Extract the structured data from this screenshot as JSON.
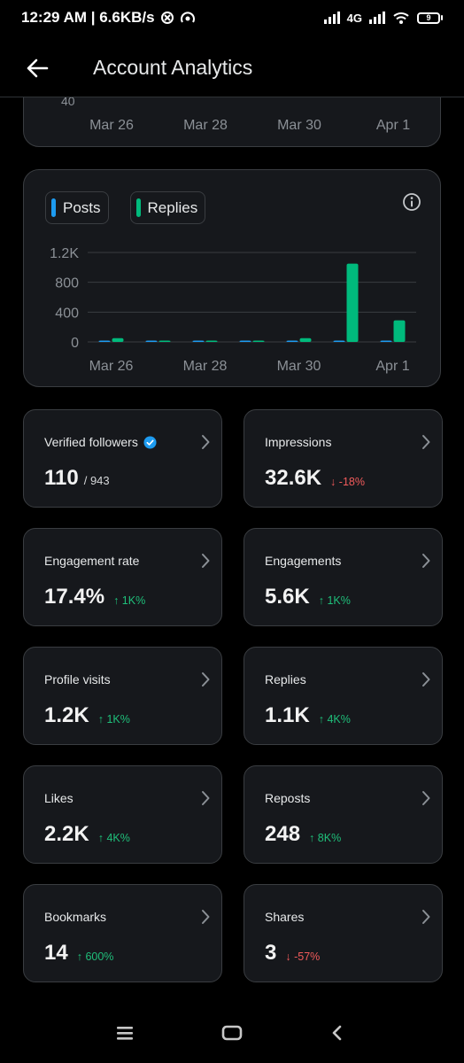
{
  "status_bar": {
    "time": "12:29 AM | 6.6KB/s",
    "network_type": "4G",
    "battery_level": "9"
  },
  "header": {
    "title": "Account Analytics"
  },
  "top_chart": {
    "partial_tick": "40",
    "x_labels": [
      "Mar 26",
      "Mar 28",
      "Mar 30",
      "Apr 1"
    ]
  },
  "chart_data": {
    "type": "bar",
    "categories": [
      "Mar 26",
      "Mar 27",
      "Mar 28",
      "Mar 29",
      "Mar 30",
      "Mar 31",
      "Apr 1"
    ],
    "x_tick_labels": [
      "Mar 26",
      "Mar 28",
      "Mar 30",
      "Apr 1"
    ],
    "y_tick_labels": [
      "1.2K",
      "800",
      "400",
      "0"
    ],
    "ylim": [
      0,
      1200
    ],
    "grid": true,
    "legend_position": "top-left",
    "series": [
      {
        "name": "Posts",
        "color": "#1d9bf0",
        "values": [
          10,
          0,
          0,
          0,
          5,
          15,
          15
        ]
      },
      {
        "name": "Replies",
        "color": "#00ba7c",
        "values": [
          50,
          10,
          0,
          0,
          50,
          1050,
          290
        ]
      }
    ]
  },
  "metrics": [
    {
      "label": "Verified followers",
      "value": "110",
      "sub": "/ 943",
      "verified": true
    },
    {
      "label": "Impressions",
      "value": "32.6K",
      "delta": "-18%",
      "direction": "down"
    },
    {
      "label": "Engagement rate",
      "value": "17.4%",
      "delta": "1K%",
      "direction": "up"
    },
    {
      "label": "Engagements",
      "value": "5.6K",
      "delta": "1K%",
      "direction": "up"
    },
    {
      "label": "Profile visits",
      "value": "1.2K",
      "delta": "1K%",
      "direction": "up"
    },
    {
      "label": "Replies",
      "value": "1.1K",
      "delta": "4K%",
      "direction": "up"
    },
    {
      "label": "Likes",
      "value": "2.2K",
      "delta": "4K%",
      "direction": "up"
    },
    {
      "label": "Reposts",
      "value": "248",
      "delta": "8K%",
      "direction": "up"
    },
    {
      "label": "Bookmarks",
      "value": "14",
      "delta": "600%",
      "direction": "up"
    },
    {
      "label": "Shares",
      "value": "3",
      "delta": "-57%",
      "direction": "down"
    }
  ],
  "colors": {
    "up": "#1fbf7a",
    "down": "#f25b5b",
    "verified_badge": "#1d9bf0"
  },
  "icons": {
    "back": "arrow-left-icon",
    "info": "info-icon",
    "chevron": "chevron-right-icon",
    "nav_menu": "menu-icon",
    "nav_home": "home-icon",
    "nav_back": "back-icon"
  }
}
